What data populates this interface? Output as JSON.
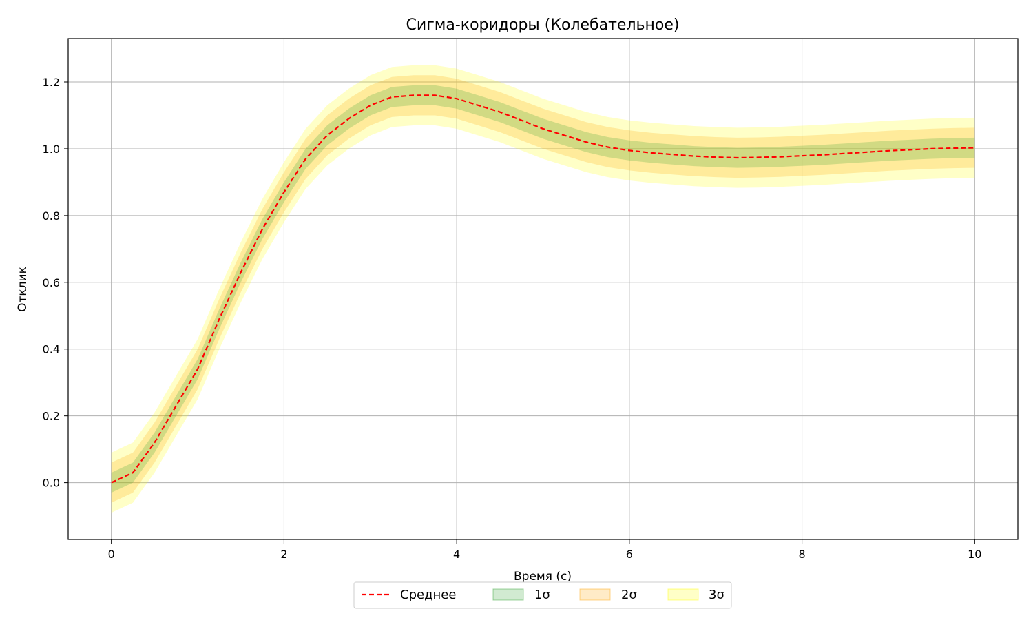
{
  "chart_data": {
    "type": "line",
    "title": "Сигма-коридоры (Колебательное)",
    "xlabel": "Время (с)",
    "ylabel": "Отклик",
    "xlim": [
      -0.5,
      10.5
    ],
    "ylim": [
      -0.17,
      1.33
    ],
    "xticks": [
      0,
      2,
      4,
      6,
      8,
      10
    ],
    "yticks": [
      0.0,
      0.2,
      0.4,
      0.6,
      0.8,
      1.0,
      1.2
    ],
    "xtick_labels": [
      "0",
      "2",
      "4",
      "6",
      "8",
      "10"
    ],
    "ytick_labels": [
      "0.0",
      "0.2",
      "0.4",
      "0.6",
      "0.8",
      "1.0",
      "1.2"
    ],
    "grid": true,
    "legend_position": "bottom-center",
    "x": [
      0,
      0.25,
      0.5,
      0.75,
      1.0,
      1.25,
      1.5,
      1.75,
      2.0,
      2.25,
      2.5,
      2.75,
      3.0,
      3.25,
      3.5,
      3.75,
      4.0,
      4.25,
      4.5,
      4.75,
      5.0,
      5.25,
      5.5,
      5.75,
      6.0,
      6.25,
      6.5,
      6.75,
      7.0,
      7.25,
      7.5,
      7.75,
      8.0,
      8.25,
      8.5,
      8.75,
      9.0,
      9.25,
      9.5,
      9.75,
      10.0
    ],
    "series": [
      {
        "name": "Среднее",
        "style": "dashed",
        "color": "#ff0000",
        "values": [
          0.0,
          0.03,
          0.12,
          0.23,
          0.34,
          0.49,
          0.63,
          0.76,
          0.87,
          0.97,
          1.04,
          1.09,
          1.13,
          1.155,
          1.16,
          1.16,
          1.15,
          1.13,
          1.11,
          1.085,
          1.06,
          1.04,
          1.02,
          1.005,
          0.995,
          0.988,
          0.983,
          0.978,
          0.975,
          0.973,
          0.974,
          0.976,
          0.979,
          0.982,
          0.986,
          0.99,
          0.994,
          0.997,
          1.0,
          1.002,
          1.003
        ]
      }
    ],
    "bands": [
      {
        "name": "1σ",
        "color": "#2ca02c",
        "opacity": 0.22,
        "sigma": [
          0.03,
          0.03,
          0.03,
          0.03,
          0.03,
          0.03,
          0.03,
          0.03,
          0.03,
          0.03,
          0.03,
          0.03,
          0.03,
          0.03,
          0.03,
          0.03,
          0.03,
          0.03,
          0.03,
          0.03,
          0.03,
          0.03,
          0.03,
          0.03,
          0.03,
          0.03,
          0.03,
          0.03,
          0.03,
          0.03,
          0.03,
          0.03,
          0.03,
          0.03,
          0.03,
          0.03,
          0.03,
          0.03,
          0.03,
          0.03,
          0.03
        ]
      },
      {
        "name": "2σ",
        "color": "#ffa500",
        "opacity": 0.22,
        "sigma": [
          0.03,
          0.03,
          0.03,
          0.03,
          0.03,
          0.03,
          0.03,
          0.03,
          0.03,
          0.03,
          0.03,
          0.03,
          0.03,
          0.03,
          0.03,
          0.03,
          0.03,
          0.03,
          0.03,
          0.03,
          0.03,
          0.03,
          0.03,
          0.03,
          0.03,
          0.03,
          0.03,
          0.03,
          0.03,
          0.03,
          0.03,
          0.03,
          0.03,
          0.03,
          0.03,
          0.03,
          0.03,
          0.03,
          0.03,
          0.03,
          0.03
        ]
      },
      {
        "name": "3σ",
        "color": "#ffff00",
        "opacity": 0.22,
        "sigma": [
          0.03,
          0.03,
          0.03,
          0.03,
          0.03,
          0.03,
          0.03,
          0.03,
          0.03,
          0.03,
          0.03,
          0.03,
          0.03,
          0.03,
          0.03,
          0.03,
          0.03,
          0.03,
          0.03,
          0.03,
          0.03,
          0.03,
          0.03,
          0.03,
          0.03,
          0.03,
          0.03,
          0.03,
          0.03,
          0.03,
          0.03,
          0.03,
          0.03,
          0.03,
          0.03,
          0.03,
          0.03,
          0.03,
          0.03,
          0.03,
          0.03
        ]
      }
    ],
    "legend": [
      {
        "label": "Среднее",
        "kind": "line",
        "color": "#ff0000"
      },
      {
        "label": "1σ",
        "kind": "patch",
        "color": "#2ca02c"
      },
      {
        "label": "2σ",
        "kind": "patch",
        "color": "#ffa500"
      },
      {
        "label": "3σ",
        "kind": "patch",
        "color": "#ffff00"
      }
    ]
  }
}
